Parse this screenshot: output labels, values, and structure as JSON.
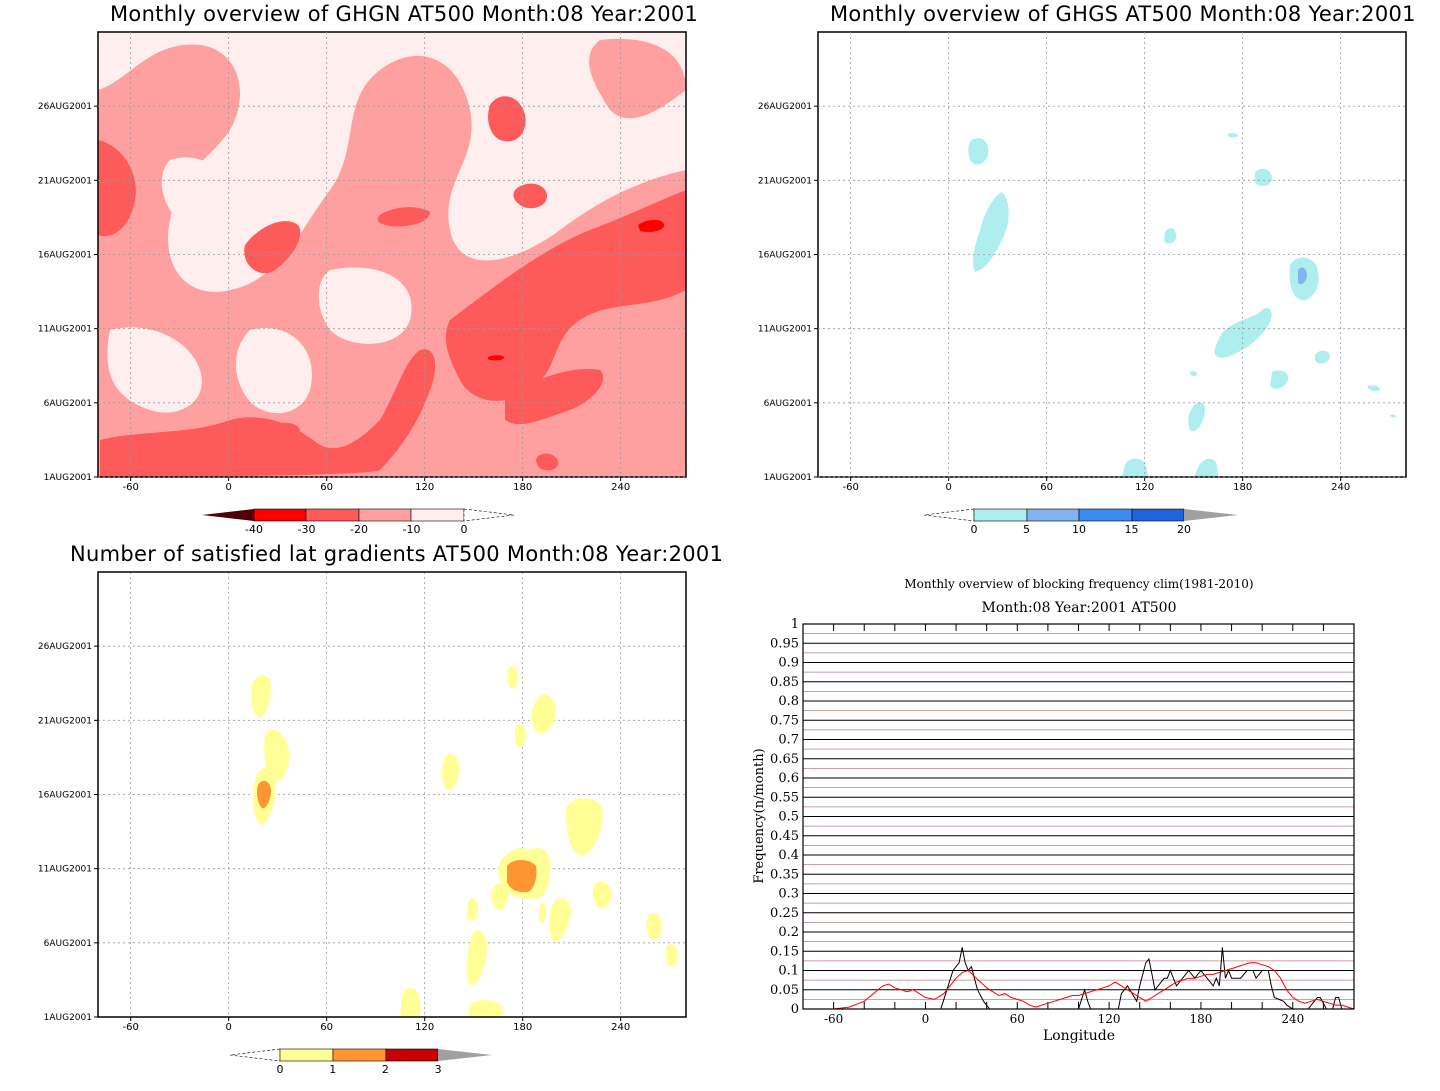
{
  "chart_data": [
    {
      "type": "heatmap",
      "title": "Monthly overview of GHGN AT500 Month:08 Year:2001",
      "x_ticks": [
        "-60",
        "0",
        "60",
        "120",
        "180",
        "240"
      ],
      "y_ticks": [
        "1AUG2001",
        "6AUG2001",
        "11AUG2001",
        "16AUG2001",
        "21AUG2001",
        "26AUG2001"
      ],
      "colorbar_ticks": [
        "-40",
        "-30",
        "-20",
        "-10",
        "0"
      ],
      "colors": [
        "#500000",
        "#ff0000",
        "#ff5a5a",
        "#ffa0a0",
        "#ffeeee"
      ],
      "xlim": [
        -80,
        280
      ],
      "ylim": [
        1,
        31
      ]
    },
    {
      "type": "heatmap",
      "title": "Monthly overview of GHGS AT500 Month:08 Year:2001",
      "x_ticks": [
        "-60",
        "0",
        "60",
        "120",
        "180",
        "240"
      ],
      "y_ticks": [
        "1AUG2001",
        "6AUG2001",
        "11AUG2001",
        "16AUG2001",
        "21AUG2001",
        "26AUG2001"
      ],
      "colorbar_ticks": [
        "0",
        "5",
        "10",
        "15",
        "20"
      ],
      "colors": [
        "#afeeee",
        "#82b4f0",
        "#3c8cf0",
        "#1e64dc",
        "#a0a0a0"
      ],
      "xlim": [
        -80,
        280
      ],
      "ylim": [
        1,
        31
      ]
    },
    {
      "type": "heatmap",
      "title": "Number of satisfied lat gradients AT500 Month:08 Year:2001",
      "x_ticks": [
        "-60",
        "0",
        "60",
        "120",
        "180",
        "240"
      ],
      "y_ticks": [
        "1AUG2001",
        "6AUG2001",
        "11AUG2001",
        "16AUG2001",
        "21AUG2001",
        "26AUG2001"
      ],
      "colorbar_ticks": [
        "0",
        "1",
        "2",
        "3"
      ],
      "colors": [
        "#ffff96",
        "#ff9632",
        "#c80000",
        "#a0a0a0"
      ],
      "xlim": [
        -80,
        280
      ],
      "ylim": [
        1,
        31
      ]
    },
    {
      "type": "line",
      "title": "Monthly overview of blocking frequency clim(1981-2010)",
      "subtitle": "Month:08 Year:2001  AT500",
      "xlabel": "Longitude",
      "ylabel": "Frequency(n/month)",
      "x_ticks": [
        "-60",
        "0",
        "60",
        "120",
        "180",
        "240"
      ],
      "y_ticks": [
        "0",
        "0.05",
        "0.1",
        "0.15",
        "0.2",
        "0.25",
        "0.3",
        "0.35",
        "0.4",
        "0.45",
        "0.5",
        "0.55",
        "0.6",
        "0.65",
        "0.7",
        "0.75",
        "0.8",
        "0.85",
        "0.9",
        "0.95",
        "1"
      ],
      "xlim": [
        -80,
        280
      ],
      "ylim": [
        0,
        1
      ],
      "series": [
        {
          "color": "#000000",
          "x": [
            -80,
            10,
            14,
            18,
            22,
            24,
            26,
            28,
            30,
            32,
            34,
            38,
            42,
            50,
            100,
            104,
            106,
            108,
            110,
            112,
            114,
            120,
            126,
            128,
            130,
            132,
            138,
            140,
            144,
            146,
            148,
            150,
            152,
            156,
            158,
            160,
            164,
            168,
            172,
            176,
            180,
            184,
            188,
            190,
            192,
            194,
            196,
            198,
            200,
            206,
            210,
            214,
            216,
            220,
            224,
            226,
            228,
            234,
            236,
            240,
            250,
            256,
            258,
            262,
            264,
            266,
            268,
            270,
            272,
            274,
            276,
            278,
            280
          ],
          "y": [
            0,
            0,
            0.05,
            0.1,
            0.12,
            0.16,
            0.12,
            0.1,
            0.11,
            0.08,
            0.05,
            0.02,
            0,
            0,
            0,
            0.05,
            0.02,
            0,
            0,
            0,
            0,
            0,
            0,
            0.04,
            0.05,
            0.06,
            0.02,
            0.06,
            0.12,
            0.13,
            0.09,
            0.05,
            0.06,
            0.08,
            0.08,
            0.1,
            0.06,
            0.08,
            0.1,
            0.08,
            0.1,
            0.08,
            0.06,
            0.08,
            0.06,
            0.16,
            0.08,
            0.1,
            0.08,
            0.08,
            0.1,
            0.1,
            0.08,
            0.1,
            0.1,
            0.06,
            0.03,
            0.02,
            0.01,
            0,
            0,
            0.03,
            0.03,
            0,
            0,
            0,
            0.03,
            0.03,
            0,
            0,
            0,
            0,
            0
          ]
        },
        {
          "color": "#ff0000",
          "x": [
            -80,
            -60,
            -50,
            -40,
            -34,
            -28,
            -24,
            -20,
            -16,
            -12,
            -8,
            -4,
            0,
            6,
            12,
            16,
            20,
            24,
            28,
            32,
            36,
            40,
            44,
            48,
            52,
            56,
            60,
            64,
            68,
            72,
            76,
            80,
            84,
            88,
            92,
            96,
            100,
            104,
            108,
            112,
            116,
            120,
            124,
            128,
            132,
            136,
            140,
            144,
            148,
            152,
            156,
            160,
            164,
            168,
            172,
            176,
            180,
            184,
            188,
            192,
            196,
            200,
            204,
            208,
            212,
            216,
            220,
            224,
            228,
            232,
            236,
            240,
            244,
            248,
            252,
            256,
            260,
            264,
            268,
            272,
            276,
            280
          ],
          "y": [
            0,
            0,
            0.005,
            0.02,
            0.04,
            0.06,
            0.065,
            0.055,
            0.05,
            0.045,
            0.05,
            0.04,
            0.03,
            0.025,
            0.04,
            0.06,
            0.08,
            0.095,
            0.1,
            0.085,
            0.07,
            0.055,
            0.045,
            0.035,
            0.04,
            0.03,
            0.025,
            0.02,
            0.01,
            0.005,
            0.01,
            0.015,
            0.02,
            0.025,
            0.03,
            0.035,
            0.035,
            0.04,
            0.045,
            0.05,
            0.055,
            0.06,
            0.07,
            0.06,
            0.05,
            0.04,
            0.03,
            0.02,
            0.03,
            0.04,
            0.05,
            0.06,
            0.07,
            0.075,
            0.08,
            0.08,
            0.085,
            0.09,
            0.09,
            0.095,
            0.1,
            0.105,
            0.11,
            0.115,
            0.12,
            0.12,
            0.115,
            0.11,
            0.1,
            0.08,
            0.05,
            0.03,
            0.02,
            0.015,
            0.02,
            0.025,
            0.02,
            0.015,
            0.01,
            0.01,
            0.005,
            0
          ]
        }
      ]
    }
  ]
}
